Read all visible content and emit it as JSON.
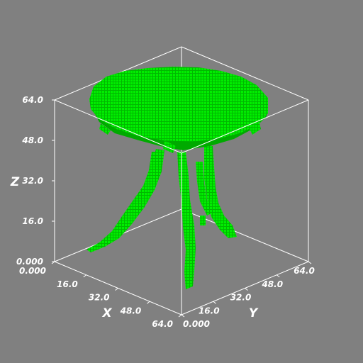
{
  "plot": {
    "background_color": "#808080",
    "voxel_color": "#00ee00",
    "voxel_shadow_color": "#007a00",
    "box_color": "#ffffff",
    "x_axis": {
      "title": "X",
      "ticks": [
        "0.000",
        "16.0",
        "32.0",
        "48.0",
        "64.0"
      ],
      "range": [
        0,
        64
      ]
    },
    "y_axis": {
      "title": "Y",
      "ticks": [
        "0.000",
        "16.0",
        "32.0",
        "48.0",
        "64.0"
      ],
      "range": [
        0,
        64
      ]
    },
    "z_axis": {
      "title": "Z",
      "ticks": [
        "0.000",
        "16.0",
        "32.0",
        "48.0",
        "64.0"
      ],
      "range": [
        0,
        64
      ]
    }
  }
}
